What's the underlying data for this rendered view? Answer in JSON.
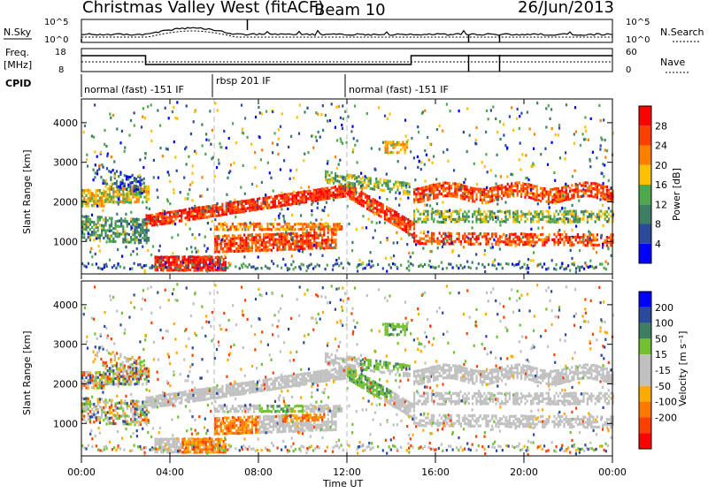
{
  "header": {
    "title": "Christmas Valley West (fitACF)",
    "beam": "Beam 10",
    "date": "26/Jun/2013"
  },
  "nsky_panel": {
    "left_label": "N.Sky",
    "right_label": "N.Search",
    "left_ticks": [
      "10^5",
      "10^0"
    ],
    "right_ticks": [
      "10^5",
      "10^0"
    ]
  },
  "freq_panel": {
    "left_label_1": "Freq.",
    "left_label_2": "[MHz]",
    "right_label": "Nave",
    "left_ticks": [
      "18",
      "8"
    ],
    "right_ticks": [
      "60",
      "0"
    ]
  },
  "cpid": {
    "label": "CPID",
    "modes": [
      "normal (fast) -151 IF",
      "rbsp 201 IF",
      "normal (fast) -151 IF"
    ]
  },
  "x_axis": {
    "label": "Time UT",
    "ticks": [
      "00:00",
      "04:00",
      "08:00",
      "12:00",
      "16:00",
      "20:00",
      "00:00"
    ]
  },
  "colors": {
    "power": [
      "#0000ff",
      "#2c4a9c",
      "#3e7f63",
      "#4fa84d",
      "#ffc000",
      "#ff8000",
      "#ff4000",
      "#ff0000"
    ],
    "velocity": [
      "#ff0000",
      "#ff4000",
      "#ff7800",
      "#ffaa00",
      "#c0c0c0",
      "#c0c0c0",
      "#70c030",
      "#3e7f63",
      "#2c4a9c",
      "#0000ff"
    ],
    "ground_scatter": "#c0c0c0"
  },
  "chart_data": [
    {
      "type": "heatmap",
      "name_hint": "power",
      "ylabel": "Slant Range [km]",
      "xlabel": "",
      "ylim": [
        180,
        4600
      ],
      "xlim_hours": [
        0,
        24
      ],
      "y_ticks": [
        "1000",
        "2000",
        "3000",
        "4000"
      ],
      "colorbar_title": "Power [dB]",
      "colorbar_ticks": [
        "4",
        "8",
        "12",
        "16",
        "20",
        "24",
        "28"
      ],
      "colorbar_range": [
        0,
        32
      ]
    },
    {
      "type": "heatmap",
      "name_hint": "velocity",
      "ylabel": "Slant Range [km]",
      "xlabel": "Time UT",
      "ylim": [
        180,
        4600
      ],
      "xlim_hours": [
        0,
        24
      ],
      "y_ticks": [
        "1000",
        "2000",
        "3000",
        "4000"
      ],
      "colorbar_title": "Velocity [m s⁻¹]",
      "colorbar_ticks": [
        "200",
        "100",
        "50",
        "15",
        "-15",
        "-50",
        "-100",
        "-200"
      ]
    }
  ]
}
